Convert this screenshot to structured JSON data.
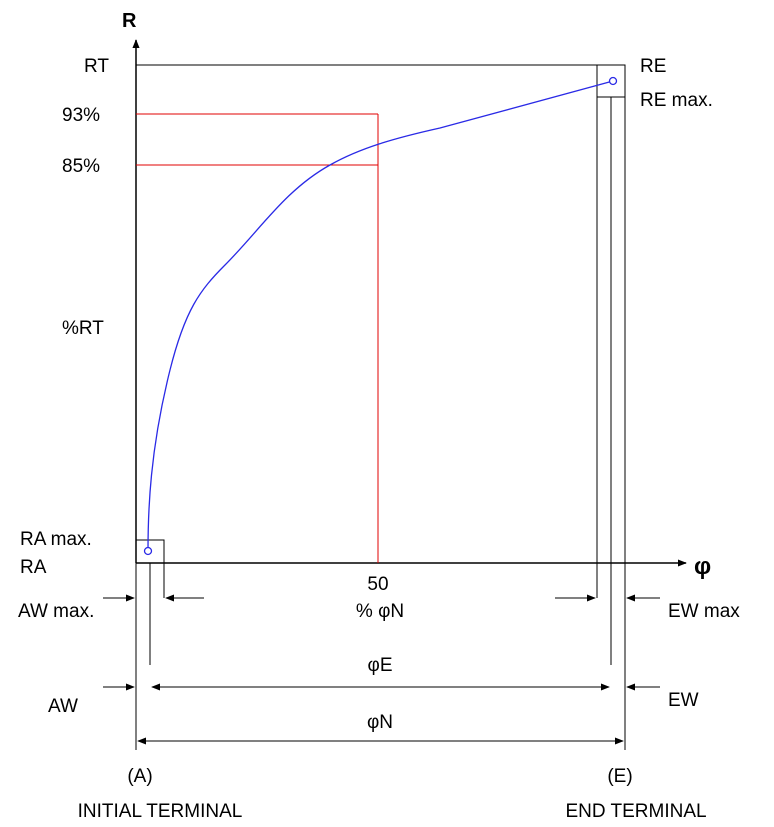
{
  "axes": {
    "y_axis_label": "R",
    "x_axis_label": "φ"
  },
  "y_labels": {
    "rt": "RT",
    "p93": "93%",
    "p85": "85%",
    "prt": "%RT",
    "ra_max": "RA max.",
    "ra": "RA"
  },
  "right_labels": {
    "re": "RE",
    "re_max": "RE max."
  },
  "x_marks": {
    "fifty": "50",
    "pct_phin": "% φN"
  },
  "dimensions": {
    "aw_max": "AW max.",
    "aw": "AW",
    "ew_max": "EW max",
    "ew": "EW",
    "phi_e": "φE",
    "phi_n": "φN"
  },
  "terminals": {
    "a_code": "(A)",
    "a_name": "INITIAL TERMINAL",
    "e_code": "(E)",
    "e_name": "END TERMINAL"
  },
  "colors": {
    "curve": "#2a2ae6",
    "guides": "#e00000",
    "lines": "#000000"
  }
}
